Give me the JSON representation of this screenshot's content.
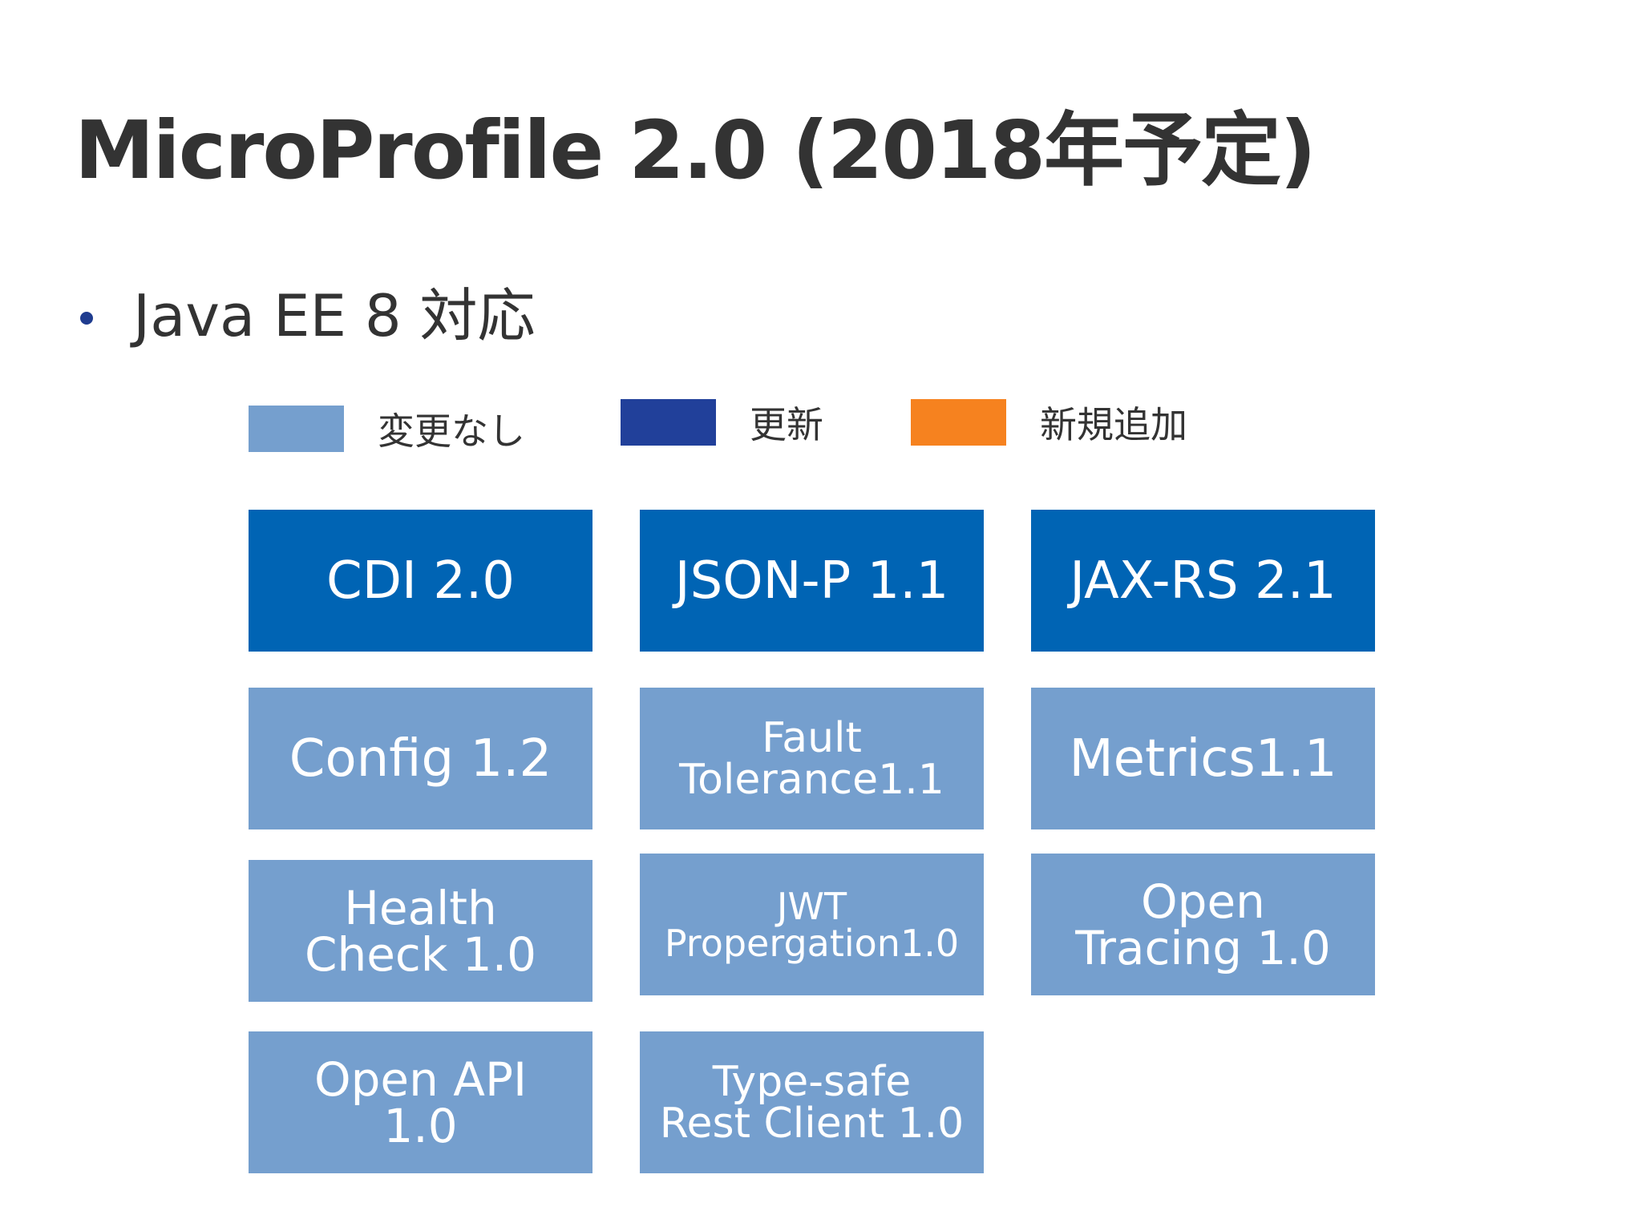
{
  "title": "MicroProfile 2.0 (2018年予定)",
  "bullet": "Java EE 8 対応",
  "colors": {
    "unchanged": "#759fce",
    "updated": "#21409a",
    "new": "#f6821f",
    "box_updated": "#0064b4"
  },
  "legend": [
    {
      "label": "変更なし",
      "color": "#759fce"
    },
    {
      "label": "更新",
      "color": "#21409a"
    },
    {
      "label": "新規追加",
      "color": "#f6821f"
    }
  ],
  "boxes": [
    {
      "label": "CDI 2.0",
      "status": "updated"
    },
    {
      "label": "JSON-P 1.1",
      "status": "updated"
    },
    {
      "label": "JAX-RS 2.1",
      "status": "updated"
    },
    {
      "label": "Config 1.2",
      "status": "unchanged"
    },
    {
      "label": "Fault\nTolerance1.1",
      "status": "unchanged"
    },
    {
      "label": "Metrics1.1",
      "status": "unchanged"
    },
    {
      "label": "Health\nCheck 1.0",
      "status": "unchanged"
    },
    {
      "label": "JWT\nPropergation1.0",
      "status": "unchanged"
    },
    {
      "label": "Open\nTracing 1.0",
      "status": "unchanged"
    },
    {
      "label": "Open API\n1.0",
      "status": "unchanged"
    },
    {
      "label": "Type-safe\nRest Client 1.0",
      "status": "unchanged"
    }
  ]
}
